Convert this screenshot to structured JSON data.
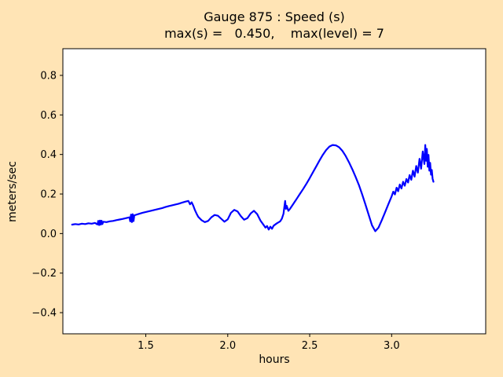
{
  "figure": {
    "background_color": "#ffe4b5",
    "plot_background_color": "#ffffff",
    "axis_color": "#000000"
  },
  "chart_data": {
    "type": "line",
    "title": "Gauge 875 : Speed (s)",
    "subtitle": "max(s) =   0.450,    max(level) = 7",
    "xlabel": "hours",
    "ylabel": "meters/sec",
    "xlim": [
      0.994,
      3.574
    ],
    "ylim": [
      -0.507,
      0.935
    ],
    "grid": false,
    "legend": false,
    "xticks": [
      {
        "v": 1.5,
        "label": "1.5"
      },
      {
        "v": 2.0,
        "label": "2.0"
      },
      {
        "v": 2.5,
        "label": "2.5"
      },
      {
        "v": 3.0,
        "label": "3.0"
      }
    ],
    "yticks": [
      {
        "v": -0.4,
        "label": "−0.4"
      },
      {
        "v": -0.2,
        "label": "−0.2"
      },
      {
        "v": 0.0,
        "label": "0.0"
      },
      {
        "v": 0.2,
        "label": "0.2"
      },
      {
        "v": 0.4,
        "label": "0.4"
      },
      {
        "v": 0.6,
        "label": "0.6"
      },
      {
        "v": 0.8,
        "label": "0.8"
      }
    ],
    "series": [
      {
        "name": "speed",
        "color": "#0000ff",
        "points": [
          [
            1.05,
            0.045
          ],
          [
            1.07,
            0.048
          ],
          [
            1.09,
            0.046
          ],
          [
            1.11,
            0.05
          ],
          [
            1.13,
            0.048
          ],
          [
            1.15,
            0.052
          ],
          [
            1.17,
            0.05
          ],
          [
            1.19,
            0.054
          ],
          [
            1.205,
            0.046
          ],
          [
            1.21,
            0.064
          ],
          [
            1.215,
            0.043
          ],
          [
            1.22,
            0.066
          ],
          [
            1.225,
            0.045
          ],
          [
            1.23,
            0.065
          ],
          [
            1.235,
            0.048
          ],
          [
            1.24,
            0.06
          ],
          [
            1.26,
            0.058
          ],
          [
            1.28,
            0.062
          ],
          [
            1.3,
            0.064
          ],
          [
            1.32,
            0.068
          ],
          [
            1.34,
            0.071
          ],
          [
            1.36,
            0.074
          ],
          [
            1.38,
            0.078
          ],
          [
            1.4,
            0.082
          ],
          [
            1.405,
            0.062
          ],
          [
            1.41,
            0.096
          ],
          [
            1.415,
            0.058
          ],
          [
            1.42,
            0.098
          ],
          [
            1.425,
            0.063
          ],
          [
            1.43,
            0.092
          ],
          [
            1.44,
            0.095
          ],
          [
            1.46,
            0.1
          ],
          [
            1.48,
            0.105
          ],
          [
            1.5,
            0.109
          ],
          [
            1.52,
            0.113
          ],
          [
            1.54,
            0.117
          ],
          [
            1.56,
            0.121
          ],
          [
            1.58,
            0.125
          ],
          [
            1.6,
            0.129
          ],
          [
            1.62,
            0.134
          ],
          [
            1.64,
            0.139
          ],
          [
            1.66,
            0.143
          ],
          [
            1.68,
            0.147
          ],
          [
            1.7,
            0.151
          ],
          [
            1.72,
            0.156
          ],
          [
            1.74,
            0.161
          ],
          [
            1.76,
            0.165
          ],
          [
            1.77,
            0.148
          ],
          [
            1.78,
            0.158
          ],
          [
            1.79,
            0.14
          ],
          [
            1.8,
            0.118
          ],
          [
            1.81,
            0.1
          ],
          [
            1.82,
            0.085
          ],
          [
            1.84,
            0.068
          ],
          [
            1.86,
            0.058
          ],
          [
            1.88,
            0.064
          ],
          [
            1.9,
            0.082
          ],
          [
            1.92,
            0.094
          ],
          [
            1.94,
            0.09
          ],
          [
            1.96,
            0.075
          ],
          [
            1.98,
            0.06
          ],
          [
            2.0,
            0.072
          ],
          [
            2.02,
            0.105
          ],
          [
            2.04,
            0.12
          ],
          [
            2.06,
            0.112
          ],
          [
            2.08,
            0.088
          ],
          [
            2.1,
            0.07
          ],
          [
            2.12,
            0.078
          ],
          [
            2.14,
            0.102
          ],
          [
            2.16,
            0.115
          ],
          [
            2.18,
            0.098
          ],
          [
            2.2,
            0.065
          ],
          [
            2.22,
            0.042
          ],
          [
            2.23,
            0.03
          ],
          [
            2.24,
            0.038
          ],
          [
            2.25,
            0.02
          ],
          [
            2.26,
            0.035
          ],
          [
            2.27,
            0.024
          ],
          [
            2.28,
            0.04
          ],
          [
            2.3,
            0.052
          ],
          [
            2.32,
            0.062
          ],
          [
            2.33,
            0.075
          ],
          [
            2.34,
            0.1
          ],
          [
            2.35,
            0.165
          ],
          [
            2.355,
            0.125
          ],
          [
            2.36,
            0.14
          ],
          [
            2.37,
            0.115
          ],
          [
            2.38,
            0.125
          ],
          [
            2.4,
            0.15
          ],
          [
            2.42,
            0.175
          ],
          [
            2.44,
            0.2
          ],
          [
            2.46,
            0.225
          ],
          [
            2.48,
            0.252
          ],
          [
            2.5,
            0.28
          ],
          [
            2.52,
            0.31
          ],
          [
            2.54,
            0.34
          ],
          [
            2.56,
            0.37
          ],
          [
            2.58,
            0.398
          ],
          [
            2.6,
            0.422
          ],
          [
            2.62,
            0.44
          ],
          [
            2.64,
            0.448
          ],
          [
            2.66,
            0.446
          ],
          [
            2.68,
            0.436
          ],
          [
            2.7,
            0.418
          ],
          [
            2.72,
            0.392
          ],
          [
            2.74,
            0.36
          ],
          [
            2.76,
            0.325
          ],
          [
            2.78,
            0.287
          ],
          [
            2.8,
            0.246
          ],
          [
            2.82,
            0.198
          ],
          [
            2.84,
            0.148
          ],
          [
            2.86,
            0.095
          ],
          [
            2.88,
            0.042
          ],
          [
            2.9,
            0.012
          ],
          [
            2.92,
            0.03
          ],
          [
            2.94,
            0.068
          ],
          [
            2.96,
            0.108
          ],
          [
            2.98,
            0.148
          ],
          [
            3.0,
            0.188
          ],
          [
            3.01,
            0.212
          ],
          [
            3.02,
            0.198
          ],
          [
            3.03,
            0.232
          ],
          [
            3.04,
            0.214
          ],
          [
            3.05,
            0.248
          ],
          [
            3.06,
            0.228
          ],
          [
            3.07,
            0.262
          ],
          [
            3.08,
            0.242
          ],
          [
            3.09,
            0.276
          ],
          [
            3.1,
            0.258
          ],
          [
            3.11,
            0.296
          ],
          [
            3.12,
            0.272
          ],
          [
            3.13,
            0.318
          ],
          [
            3.14,
            0.288
          ],
          [
            3.15,
            0.342
          ],
          [
            3.16,
            0.308
          ],
          [
            3.17,
            0.378
          ],
          [
            3.18,
            0.328
          ],
          [
            3.19,
            0.415
          ],
          [
            3.2,
            0.352
          ],
          [
            3.205,
            0.448
          ],
          [
            3.21,
            0.368
          ],
          [
            3.215,
            0.428
          ],
          [
            3.22,
            0.338
          ],
          [
            3.225,
            0.398
          ],
          [
            3.23,
            0.318
          ],
          [
            3.235,
            0.358
          ],
          [
            3.24,
            0.298
          ],
          [
            3.245,
            0.322
          ],
          [
            3.25,
            0.278
          ],
          [
            3.255,
            0.262
          ]
        ]
      }
    ]
  }
}
